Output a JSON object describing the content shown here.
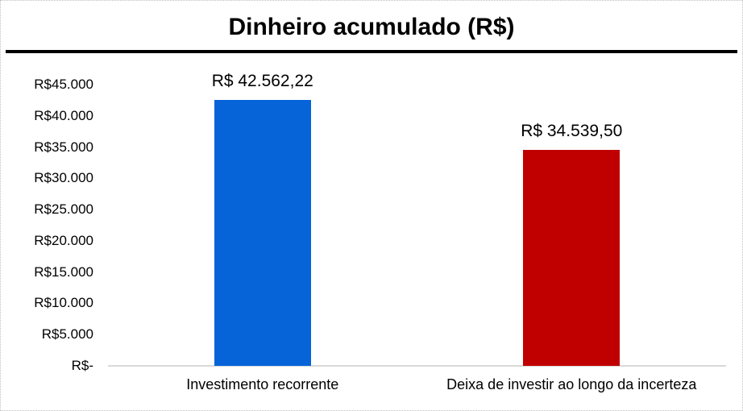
{
  "chart_data": {
    "type": "bar",
    "title": "Dinheiro acumulado (R$)",
    "categories": [
      "Investimento recorrente",
      "Deixa de investir ao longo da incerteza"
    ],
    "values": [
      42562.22,
      34539.5
    ],
    "data_labels": [
      "R$ 42.562,22",
      "R$ 34.539,50"
    ],
    "bar_colors": [
      "#0764d8",
      "#c00000"
    ],
    "ylim": [
      0,
      45000
    ],
    "ytick_step": 5000,
    "ytick_labels": [
      "R$-",
      "R$5.000",
      "R$10.000",
      "R$15.000",
      "R$20.000",
      "R$25.000",
      "R$30.000",
      "R$35.000",
      "R$40.000",
      "R$45.000"
    ],
    "xlabel": "",
    "ylabel": "",
    "grid": false,
    "legend": "none",
    "colors": {
      "title_text": "#000000",
      "divider": "#000000",
      "axis_line": "#d9d9d9",
      "tick_text": "#000000",
      "frame_border": "#bfbfbf",
      "background": "#ffffff"
    }
  }
}
